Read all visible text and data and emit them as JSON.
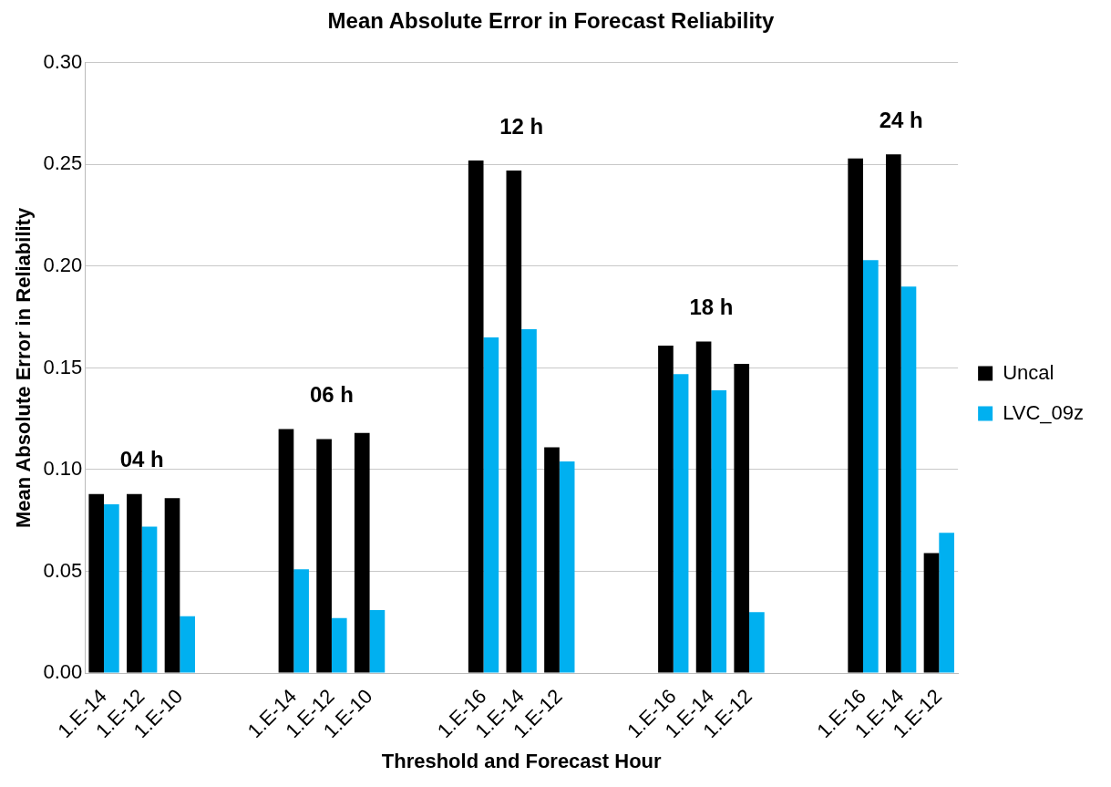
{
  "chart_data": {
    "type": "bar",
    "title": "Mean Absolute Error in Forecast Reliability",
    "xlabel": "Threshold and Forecast Hour",
    "ylabel": "Mean Absolute Error in Reliability",
    "categories": [
      "1.E-14",
      "1.E-12",
      "1.E-10",
      null,
      null,
      "1.E-14",
      "1.E-12",
      "1.E-10",
      null,
      null,
      "1.E-16",
      "1.E-14",
      "1.E-12",
      null,
      null,
      "1.E-16",
      "1.E-14",
      "1.E-12",
      null,
      null,
      "1.E-16",
      "1.E-14",
      "1.E-12"
    ],
    "series": [
      {
        "name": "Uncal",
        "color": "#000000",
        "values": [
          0.088,
          0.088,
          0.086,
          null,
          null,
          0.12,
          0.115,
          0.118,
          null,
          null,
          0.252,
          0.247,
          0.111,
          null,
          null,
          0.161,
          0.163,
          0.152,
          null,
          null,
          0.253,
          0.255,
          0.059
        ]
      },
      {
        "name": "LVC_09z",
        "color": "#00b0f0",
        "values": [
          0.083,
          0.072,
          0.028,
          null,
          null,
          0.051,
          0.027,
          0.031,
          null,
          null,
          0.165,
          0.169,
          0.104,
          null,
          null,
          0.147,
          0.139,
          0.03,
          null,
          null,
          0.203,
          0.19,
          0.069
        ]
      }
    ],
    "annotations": [
      "04 h",
      "06 h",
      "12 h",
      "18 h",
      "24 h"
    ],
    "ylim": [
      0,
      0.3
    ],
    "yticks": [
      {
        "value": 0,
        "label": "0.00"
      },
      {
        "value": 0.05,
        "label": "0.05"
      },
      {
        "value": 0.1,
        "label": "0.10"
      },
      {
        "value": 0.15,
        "label": "0.15"
      },
      {
        "value": 0.2,
        "label": "0.20"
      },
      {
        "value": 0.25,
        "label": "0.25"
      },
      {
        "value": 0.3,
        "label": "0.30"
      }
    ],
    "grid": "y",
    "legend": "right"
  }
}
